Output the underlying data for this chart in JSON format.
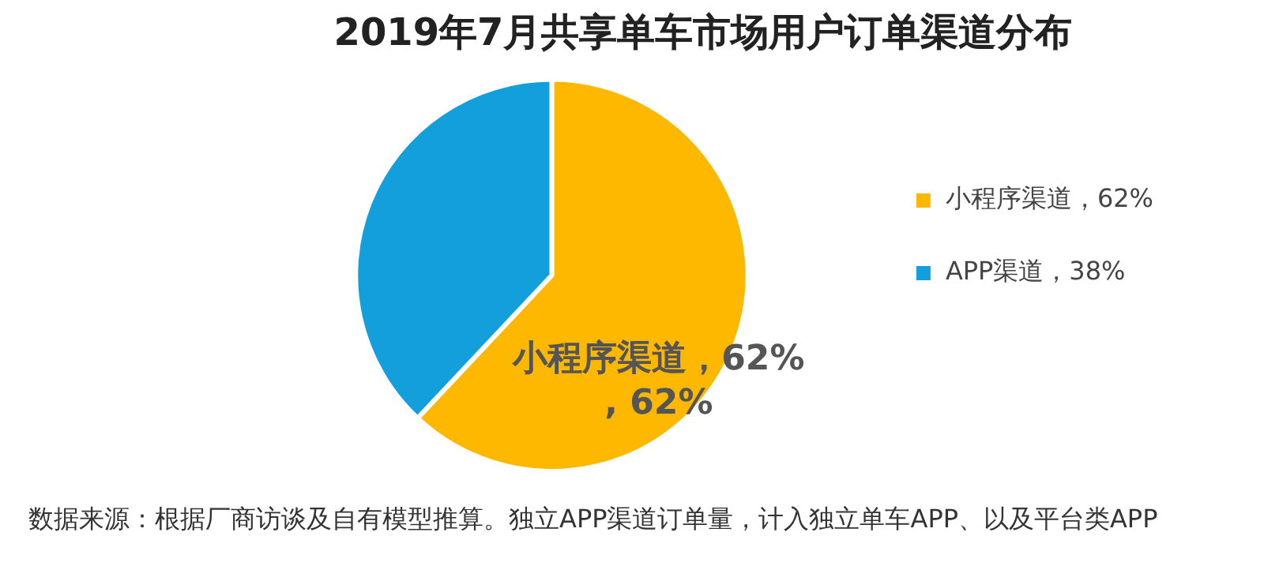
{
  "chart_data": {
    "type": "pie",
    "title": "2019年7月共享单车市场用户订单渠道分布",
    "categories": [
      "小程序渠道，62%",
      "APP渠道，38%"
    ],
    "values": [
      62,
      38
    ],
    "colors": [
      "#ffb800",
      "#129fdc"
    ],
    "value_labels": [
      "小程序渠道，62%, 62%",
      null
    ],
    "legend": "right",
    "annotations": [
      "数据来源：根据厂商访谈及自有模型推算。独立APP渠道订单量，计入独立单车APP、以及平台类APP"
    ]
  }
}
